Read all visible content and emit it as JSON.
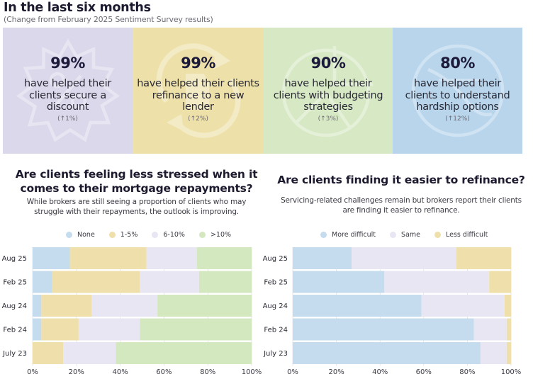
{
  "header": {
    "title": "In the last six months",
    "subtitle": "(Change from February 2025 Sentiment Survey results)"
  },
  "cards": [
    {
      "stat": "99%",
      "desc": "have helped their clients secure a discount",
      "change": "(↑1%)",
      "color": "#dcd8ec",
      "icon": "discount-badge-icon"
    },
    {
      "stat": "99%",
      "desc": "have helped their clients refinance to a new lender",
      "change": "(↑2%)",
      "color": "#ede0a8",
      "icon": "refinance-cycle-icon"
    },
    {
      "stat": "90%",
      "desc": "have helped their clients with budgeting strategies",
      "change": "(↑3%)",
      "color": "#d7e8c4",
      "icon": "budget-pie-icon"
    },
    {
      "stat": "80%",
      "desc": "have helped their clients to understand hardship options",
      "change": "(↑12%)",
      "color": "#b8d5ec",
      "icon": "hardship-circle-icon"
    }
  ],
  "left": {
    "title": "Are clients feeling less stressed when it comes to their mortgage repayments?",
    "desc": "While brokers are still seeing a proportion of clients who may struggle with their repayments, the outlook is improving."
  },
  "right": {
    "title": "Are clients finding it easier to refinance?",
    "desc": "Servicing-related challenges remain but brokers report their clients are finding it easier to refinance."
  },
  "chart_data": [
    {
      "type": "bar",
      "orientation": "horizontal",
      "stacked": true,
      "title": "Are clients feeling less stressed when it comes to their mortgage repayments?",
      "categories": [
        "Aug 25",
        "Feb 25",
        "Aug 24",
        "Feb 24",
        "July 23"
      ],
      "series": [
        {
          "name": "None",
          "color": "#c4dcee",
          "values": [
            17,
            9,
            4,
            4,
            0
          ]
        },
        {
          "name": "1-5%",
          "color": "#efdfaa",
          "values": [
            35,
            40,
            23,
            17,
            14
          ]
        },
        {
          "name": "6-10%",
          "color": "#e8e6f2",
          "values": [
            23,
            27,
            30,
            28,
            24
          ]
        },
        {
          "name": ">10%",
          "color": "#d4e8c0",
          "values": [
            25,
            24,
            43,
            51,
            62
          ]
        }
      ],
      "xlim": [
        0,
        100
      ],
      "xticks": [
        "0%",
        "20%",
        "40%",
        "60%",
        "80%",
        "100%"
      ],
      "xlabel": "",
      "ylabel": "",
      "legend": "top"
    },
    {
      "type": "bar",
      "orientation": "horizontal",
      "stacked": true,
      "title": "Are clients finding it easier to refinance?",
      "categories": [
        "Aug 25",
        "Feb 25",
        "Aug 24",
        "Feb 24",
        "July 23"
      ],
      "series": [
        {
          "name": "More difficult",
          "color": "#c4dcee",
          "values": [
            27,
            42,
            59,
            83,
            86
          ]
        },
        {
          "name": "Same",
          "color": "#e8e6f2",
          "values": [
            48,
            48,
            38,
            15,
            12
          ]
        },
        {
          "name": "Less difficult",
          "color": "#efdfaa",
          "values": [
            25,
            10,
            3,
            2,
            2
          ]
        }
      ],
      "xlim": [
        0,
        100
      ],
      "xticks": [
        "0%",
        "20%",
        "40%",
        "60%",
        "80%",
        "100%"
      ],
      "xlabel": "",
      "ylabel": "",
      "legend": "top"
    }
  ]
}
